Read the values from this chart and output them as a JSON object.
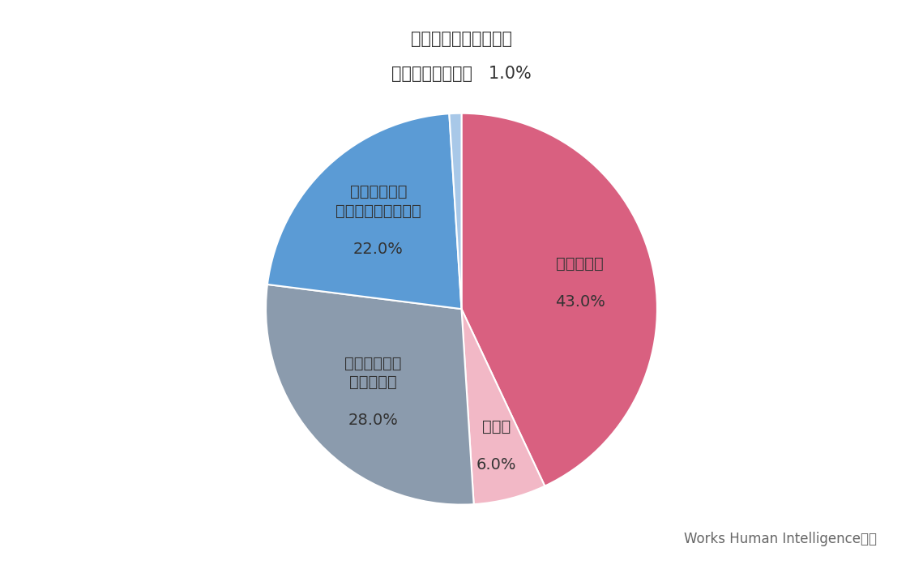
{
  "slices": [
    {
      "value": 43.0,
      "color": "#D96080",
      "text_label": "認めている",
      "pct_label": "43.0%",
      "label_r": 0.62
    },
    {
      "value": 6.0,
      "color": "#F2B8C6",
      "text_label": "準備中",
      "pct_label": "6.0%",
      "label_r": 0.72
    },
    {
      "value": 28.0,
      "color": "#8B9BAD",
      "text_label": "認めていない\n（検討中）",
      "pct_label": "28.0%",
      "label_r": 0.62
    },
    {
      "value": 22.0,
      "color": "#5B9BD5",
      "text_label": "認めていない\n（検討の予定なし）",
      "pct_label": "22.0%",
      "label_r": 0.62
    },
    {
      "value": 1.0,
      "color": "#A8C8E8",
      "text_label": null,
      "pct_label": null,
      "label_r": 0
    }
  ],
  "outside_label_line1": "過去に認めていたが、",
  "outside_label_line2": "今は認めていない   1.0%",
  "source_text": "Works Human Intelligence調べ",
  "bg_color": "#FFFFFF",
  "text_color": "#333333",
  "font_size_inner": 14,
  "font_size_outside": 15,
  "font_size_source": 12,
  "startangle": 90
}
